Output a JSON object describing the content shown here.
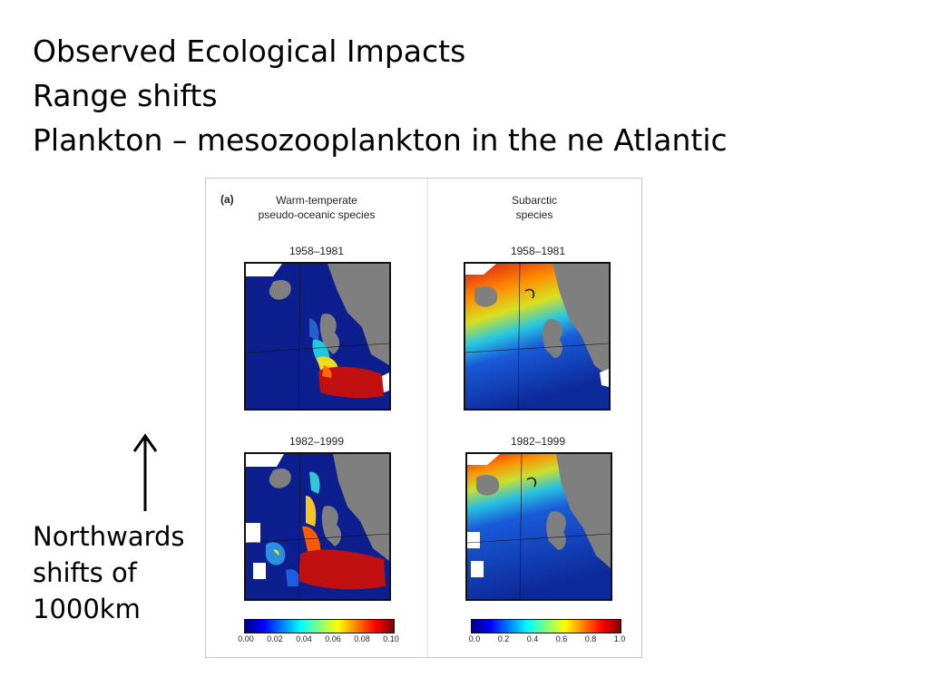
{
  "title": {
    "line1": "Observed Ecological Impacts",
    "line2": "Range shifts",
    "line3": "Plankton – mesozooplankton in the ne Atlantic"
  },
  "figure": {
    "panel_letter": "(a)",
    "left_column": {
      "title_line1": "Warm-temperate",
      "title_line2": "pseudo-oceanic species"
    },
    "right_column": {
      "title_line1": "Subarctic",
      "title_line2": "species"
    },
    "period_top": "1958–1981",
    "period_bottom": "1982–1999",
    "left_scale_ticks": [
      "0.00",
      "0.02",
      "0.04",
      "0.06",
      "0.08",
      "0.10"
    ],
    "right_scale_ticks": [
      "0.0",
      "0.2",
      "0.4",
      "0.6",
      "0.8",
      "1.0"
    ],
    "colors": {
      "land": "#7f7f7f",
      "low": "#0b1f8c",
      "high": "#b40d0d"
    }
  },
  "note": {
    "line1": "Northwards",
    "line2": "shifts of",
    "line3": "1000km"
  }
}
